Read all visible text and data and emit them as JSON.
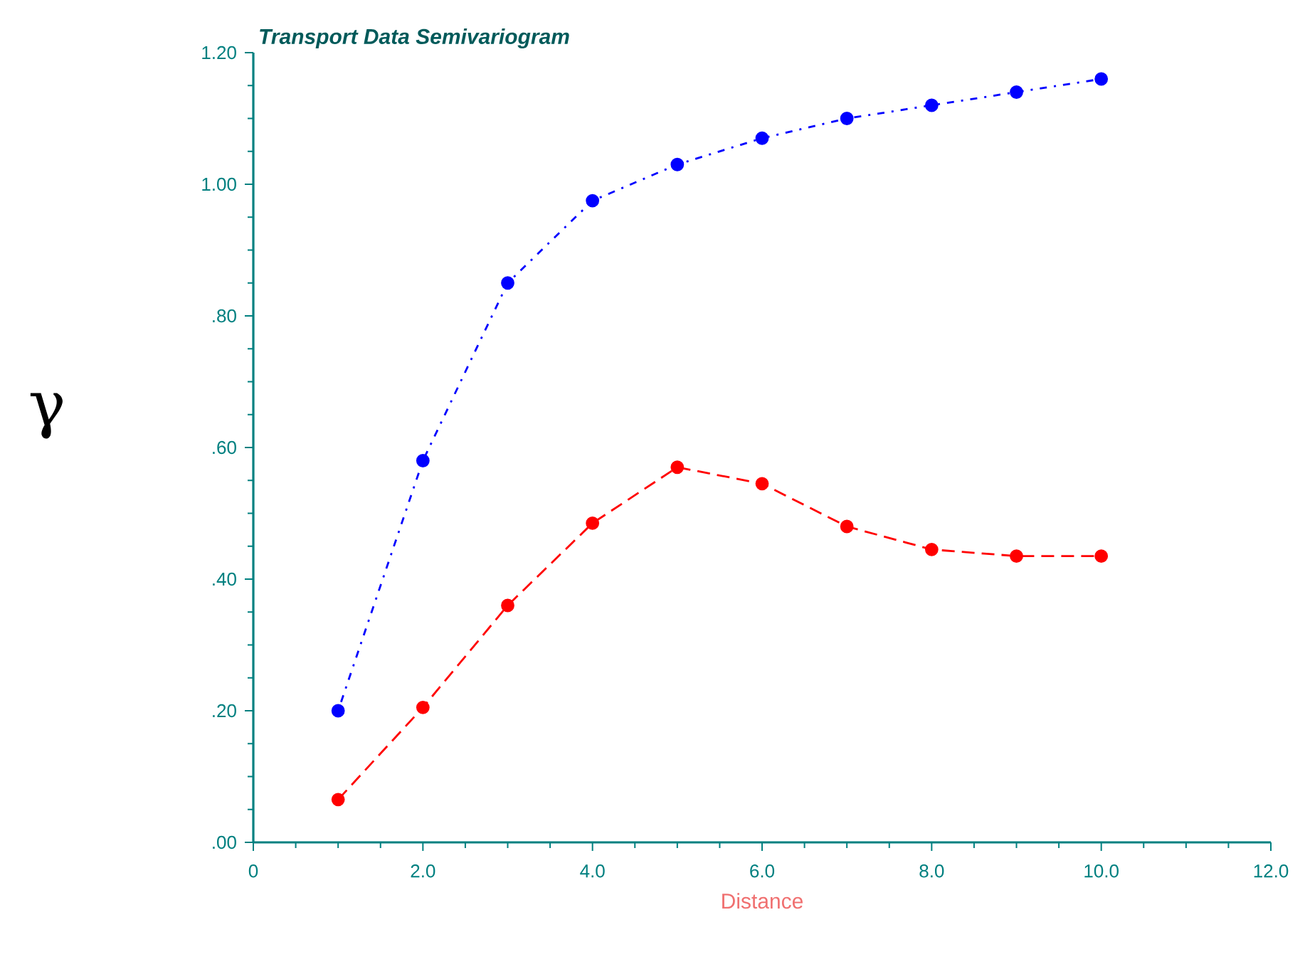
{
  "chart_data": {
    "type": "line",
    "title": "Transport Data Semivariogram",
    "xlabel": "Distance",
    "ylabel": "γ",
    "x": [
      1,
      2,
      3,
      4,
      5,
      6,
      7,
      8,
      9,
      10
    ],
    "series": [
      {
        "color": "#0000ff",
        "line_style": "dotted",
        "values": [
          0.2,
          0.58,
          0.85,
          0.975,
          1.03,
          1.07,
          1.1,
          1.12,
          1.14,
          1.16
        ]
      },
      {
        "color": "#ff0000",
        "line_style": "dashed",
        "values": [
          0.065,
          0.205,
          0.36,
          0.485,
          0.57,
          0.545,
          0.48,
          0.445,
          0.435,
          0.435
        ]
      }
    ],
    "xlim": [
      0,
      12
    ],
    "ylim": [
      0,
      1.2
    ],
    "xticks": [
      0,
      {
        "value": 2,
        "label": "2.0"
      },
      {
        "value": 4,
        "label": "4.0"
      },
      {
        "value": 6,
        "label": "6.0"
      },
      {
        "value": 8,
        "label": "8.0"
      },
      {
        "value": 10,
        "label": "10.0"
      },
      {
        "value": 12,
        "label": "12.0"
      }
    ],
    "yticks": [
      {
        "value": 0,
        "label": ".00"
      },
      {
        "value": 0.2,
        "label": ".20"
      },
      {
        "value": 0.4,
        "label": ".40"
      },
      {
        "value": 0.6,
        "label": ".60"
      },
      {
        "value": 0.8,
        "label": ".80"
      },
      {
        "value": 1.0,
        "label": "1.00"
      },
      {
        "value": 1.2,
        "label": "1.20"
      }
    ],
    "marker": "circle"
  }
}
